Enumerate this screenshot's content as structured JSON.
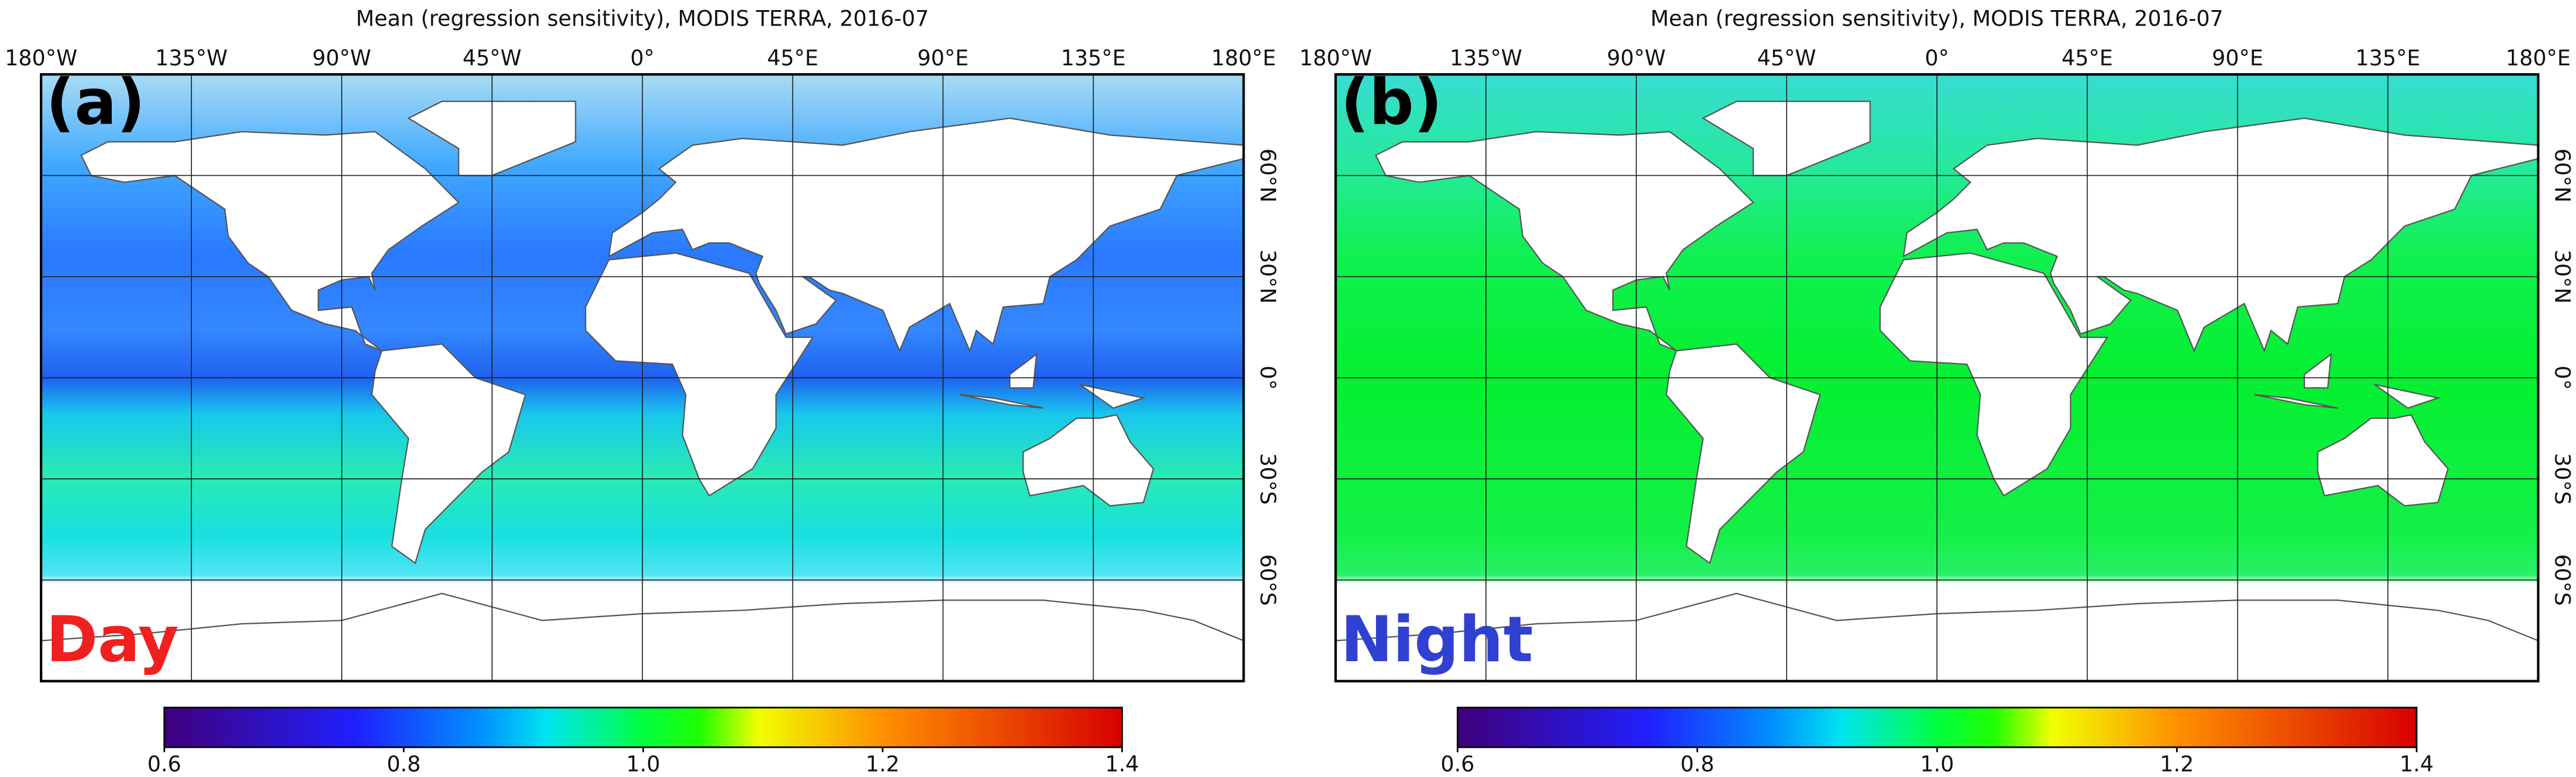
{
  "panels": [
    {
      "title": "Mean (regression sensitivity), MODIS TERRA, 2016-07",
      "label": "(a)",
      "mode": "Day",
      "mode_color": "#f02020",
      "ocean": "day",
      "lon_ticks": [
        {
          "value": -180,
          "label": "180°W"
        },
        {
          "value": -135,
          "label": "135°W"
        },
        {
          "value": -90,
          "label": "90°W"
        },
        {
          "value": -45,
          "label": "45°W"
        },
        {
          "value": 0,
          "label": "0°"
        },
        {
          "value": 45,
          "label": "45°E"
        },
        {
          "value": 90,
          "label": "90°E"
        },
        {
          "value": 135,
          "label": "135°E"
        },
        {
          "value": 180,
          "label": "180°E"
        }
      ],
      "lat_ticks": [
        {
          "value": 60,
          "label": "60°N"
        },
        {
          "value": 30,
          "label": "30°N"
        },
        {
          "value": 0,
          "label": "0°"
        },
        {
          "value": -30,
          "label": "30°S"
        },
        {
          "value": -60,
          "label": "60°S"
        }
      ],
      "colorbar_lim": [
        0.6,
        1.4
      ],
      "colorbar_ticks": [
        0.6,
        0.8,
        {
          "value": 1,
          "label": "1.0"
        },
        1.2,
        1.4
      ]
    },
    {
      "title": "Mean (regression sensitivity), MODIS TERRA, 2016-07",
      "label": "(b)",
      "mode": "Night",
      "mode_color": "#3040d0",
      "ocean": "night",
      "lon_ticks": [
        {
          "value": -180,
          "label": "180°W"
        },
        {
          "value": -135,
          "label": "135°W"
        },
        {
          "value": -90,
          "label": "90°W"
        },
        {
          "value": -45,
          "label": "45°W"
        },
        {
          "value": 0,
          "label": "0°"
        },
        {
          "value": 45,
          "label": "45°E"
        },
        {
          "value": 90,
          "label": "90°E"
        },
        {
          "value": 135,
          "label": "135°E"
        },
        {
          "value": 180,
          "label": "180°E"
        }
      ],
      "lat_ticks": [
        {
          "value": 60,
          "label": "60°N"
        },
        {
          "value": 30,
          "label": "30°N"
        },
        {
          "value": 0,
          "label": "0°"
        },
        {
          "value": -30,
          "label": "30°S"
        },
        {
          "value": -60,
          "label": "60°S"
        }
      ],
      "colorbar_lim": [
        0.6,
        1.4
      ],
      "colorbar_ticks": [
        0.6,
        0.8,
        {
          "value": 1,
          "label": "1.0"
        },
        1.2,
        1.4
      ]
    }
  ]
}
